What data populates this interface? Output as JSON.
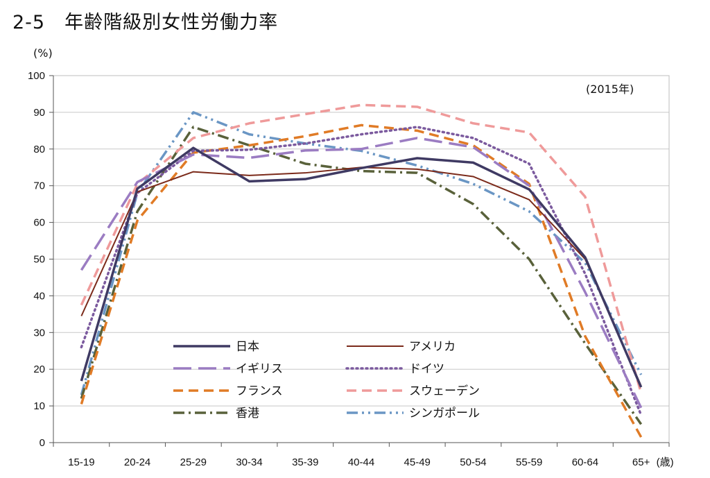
{
  "title": "2-5　年齢階級別女性労働力率",
  "chart_data": {
    "type": "line",
    "ylabel": "(%)",
    "xunit": "(歳)",
    "annotation": "(2015年)",
    "ylim": [
      0,
      100
    ],
    "yticks": [
      0,
      10,
      20,
      30,
      40,
      50,
      60,
      70,
      80,
      90,
      100
    ],
    "grid": true,
    "categories": [
      "15-19",
      "20-24",
      "25-29",
      "30-34",
      "35-39",
      "40-44",
      "45-49",
      "50-54",
      "55-59",
      "60-64",
      "65+"
    ],
    "legend_position": "bottom-left-inside",
    "series": [
      {
        "name": "日本",
        "color": "#3f3a63",
        "style": "solid",
        "values": [
          16.8,
          69.2,
          80.3,
          71.2,
          71.8,
          74.8,
          77.5,
          76.3,
          69.0,
          50.5,
          15.1
        ]
      },
      {
        "name": "アメリカ",
        "color": "#7b2a1a",
        "style": "solid-thin",
        "values": [
          34.5,
          68.3,
          73.8,
          72.8,
          73.5,
          75.0,
          74.5,
          72.5,
          66.2,
          50.0,
          15.5
        ]
      },
      {
        "name": "イギリス",
        "color": "#9b7cc2",
        "style": "longdash",
        "values": [
          47.0,
          71.0,
          78.5,
          77.6,
          79.6,
          80.0,
          83.0,
          80.5,
          70.0,
          41.0,
          9.5
        ]
      },
      {
        "name": "ドイツ",
        "color": "#7b5a9e",
        "style": "dotted",
        "values": [
          26.0,
          68.0,
          79.5,
          79.8,
          81.5,
          84.0,
          86.0,
          83.0,
          76.0,
          46.0,
          7.5
        ]
      },
      {
        "name": "フランス",
        "color": "#e07b26",
        "style": "dash",
        "values": [
          10.5,
          60.5,
          79.0,
          81.0,
          83.5,
          86.5,
          85.0,
          81.0,
          70.5,
          29.0,
          1.5
        ]
      },
      {
        "name": "スウェーデン",
        "color": "#ef9a9a",
        "style": "dash",
        "values": [
          37.5,
          70.5,
          83.0,
          87.0,
          89.5,
          92.0,
          91.5,
          87.0,
          84.5,
          67.0,
          13.5
        ]
      },
      {
        "name": "香港",
        "color": "#59613a",
        "style": "dashdot",
        "values": [
          12.0,
          63.0,
          86.0,
          81.0,
          76.0,
          74.0,
          73.5,
          65.0,
          50.0,
          27.0,
          5.0
        ]
      },
      {
        "name": "シンガポール",
        "color": "#6a96c4",
        "style": "dashdotdot",
        "values": [
          13.0,
          68.0,
          90.0,
          84.0,
          81.5,
          79.5,
          75.5,
          70.5,
          63.0,
          49.0,
          18.5
        ]
      }
    ]
  }
}
